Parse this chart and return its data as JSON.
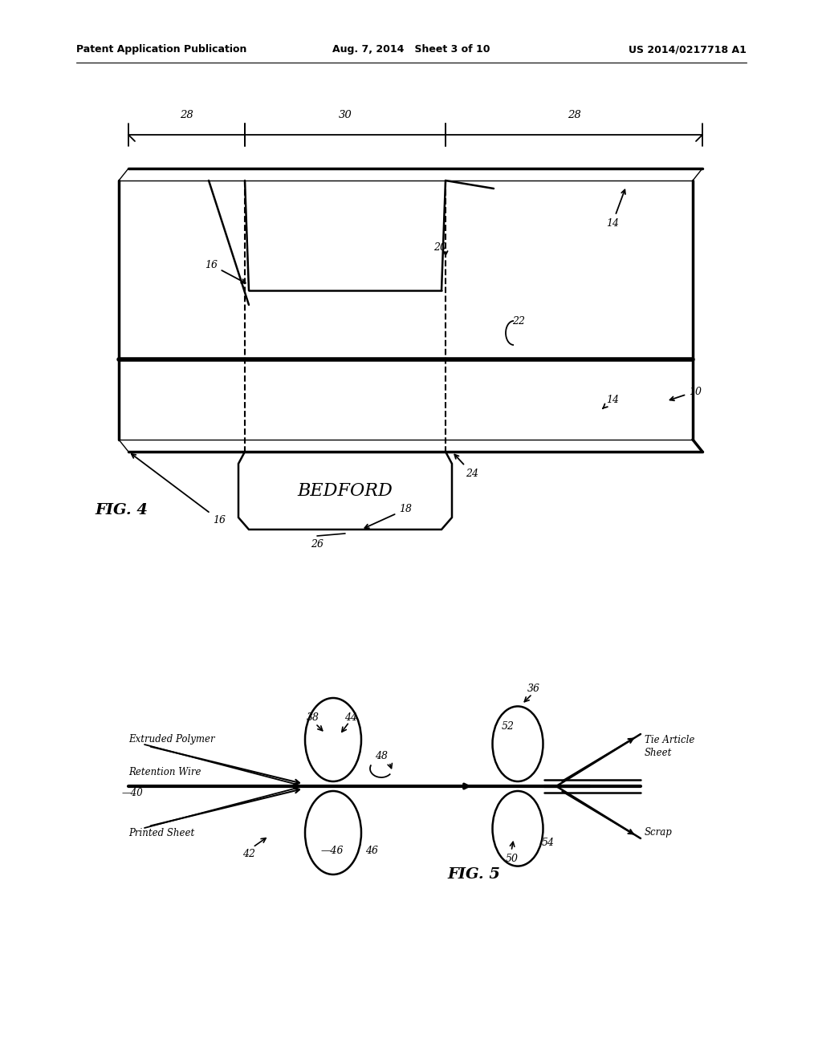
{
  "bg_color": "#ffffff",
  "header_left": "Patent Application Publication",
  "header_mid": "Aug. 7, 2014   Sheet 3 of 10",
  "header_right": "US 2014/0217718 A1",
  "fig4_label": "FIG. 4",
  "fig5_label": "FIG. 5",
  "bedford_text": "BEDFORD"
}
